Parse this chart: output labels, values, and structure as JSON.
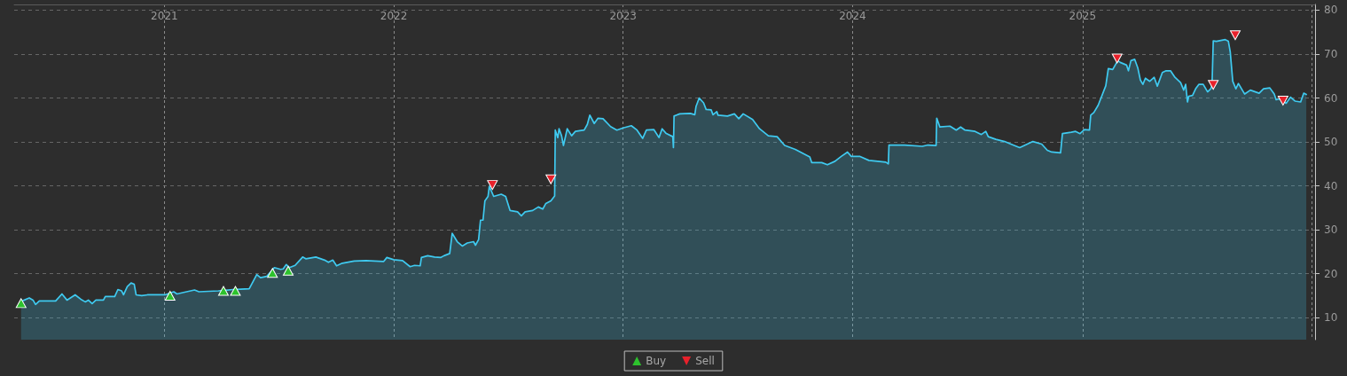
{
  "chart_data": {
    "type": "area",
    "xlim": [
      "2020-05-07",
      "2026-01-06"
    ],
    "xticks": [
      "2021",
      "2022",
      "2023",
      "2024",
      "2025",
      {
        "value": "2026",
        "label": null
      }
    ],
    "ylim": [
      5,
      81.3
    ],
    "yticks": [
      10,
      20,
      30,
      40,
      50,
      60,
      70,
      80
    ],
    "grid": true,
    "legend": "bottom",
    "series": [
      {
        "color": "#3fcaf0",
        "marker": "none",
        "x": [
          "2020-05-18",
          "2020-05-31",
          "2020-06-06",
          "2020-06-10",
          "2020-06-16",
          "2020-07-12",
          "2020-07-22",
          "2020-07-30",
          "2020-08-12",
          "2020-08-21",
          "2020-08-28",
          "2020-09-02",
          "2020-09-08",
          "2020-09-14",
          "2020-09-26",
          "2020-09-29",
          "2020-10-14",
          "2020-10-19",
          "2020-10-25",
          "2020-10-28",
          "2020-11-03",
          "2020-11-09",
          "2020-11-14",
          "2020-11-17",
          "2020-11-26",
          "2020-12-05",
          "2021-01-02",
          "2021-01-16",
          "2021-01-21",
          "2021-01-30",
          "2021-02-18",
          "2021-02-25",
          "2021-03-28",
          "2021-04-20",
          "2021-05-02",
          "2021-05-16",
          "2021-05-28",
          "2021-06-03",
          "2021-06-13",
          "2021-06-25",
          "2021-07-05",
          "2021-07-09",
          "2021-07-14",
          "2021-07-19",
          "2021-07-28",
          "2021-08-09",
          "2021-08-14",
          "2021-08-30",
          "2021-09-13",
          "2021-09-19",
          "2021-09-26",
          "2021-10-02",
          "2021-10-11",
          "2021-10-30",
          "2021-11-18",
          "2021-12-16",
          "2021-12-21",
          "2022-01-01",
          "2022-01-15",
          "2022-01-27",
          "2022-02-03",
          "2022-02-12",
          "2022-02-14",
          "2022-02-24",
          "2022-03-07",
          "2022-03-17",
          "2022-03-22",
          "2022-03-31",
          "2022-04-04",
          "2022-04-12",
          "2022-04-20",
          "2022-04-28",
          "2022-05-08",
          "2022-05-11",
          "2022-05-16",
          "2022-05-19",
          "2022-05-23",
          "2022-05-26",
          "2022-05-31",
          "2022-06-02",
          "2022-06-09",
          "2022-06-21",
          "2022-06-28",
          "2022-07-05",
          "2022-07-17",
          "2022-07-23",
          "2022-07-29",
          "2022-08-10",
          "2022-08-19",
          "2022-08-26",
          "2022-08-31",
          "2022-09-08",
          "2022-09-14",
          "2022-09-15",
          "2022-09-19",
          "2022-09-21",
          "2022-09-25",
          "2022-09-28",
          "2022-10-04",
          "2022-10-11",
          "2022-10-17",
          "2022-10-31",
          "2022-11-05",
          "2022-11-09",
          "2022-11-16",
          "2022-11-22",
          "2022-11-30",
          "2022-12-12",
          "2022-12-22",
          "2023-01-01",
          "2023-01-14",
          "2023-01-23",
          "2023-02-01",
          "2023-02-07",
          "2023-02-19",
          "2023-02-27",
          "2023-03-04",
          "2023-03-10",
          "2023-03-21",
          "2023-03-22",
          "2023-03-23",
          "2023-04-01",
          "2023-04-18",
          "2023-04-25",
          "2023-04-27",
          "2023-05-02",
          "2023-05-09",
          "2023-05-13",
          "2023-05-21",
          "2023-05-24",
          "2023-05-30",
          "2023-06-01",
          "2023-06-16",
          "2023-06-27",
          "2023-07-04",
          "2023-07-11",
          "2023-07-26",
          "2023-08-06",
          "2023-08-20",
          "2023-09-03",
          "2023-09-15",
          "2023-10-02",
          "2023-10-25",
          "2023-10-28",
          "2023-11-13",
          "2023-11-22",
          "2023-12-04",
          "2023-12-14",
          "2023-12-24",
          "2023-12-30",
          "2024-01-13",
          "2024-01-27",
          "2024-02-10",
          "2024-02-23",
          "2024-02-27",
          "2024-02-28",
          "2024-03-24",
          "2024-04-21",
          "2024-04-30",
          "2024-05-13",
          "2024-05-14",
          "2024-05-19",
          "2024-06-04",
          "2024-06-14",
          "2024-06-21",
          "2024-06-28",
          "2024-07-14",
          "2024-07-24",
          "2024-07-31",
          "2024-08-04",
          "2024-08-16",
          "2024-08-30",
          "2024-09-09",
          "2024-09-23",
          "2024-10-02",
          "2024-10-14",
          "2024-10-28",
          "2024-11-06",
          "2024-11-13",
          "2024-11-27",
          "2024-11-30",
          "2024-12-14",
          "2024-12-21",
          "2024-12-28",
          "2025-01-04",
          "2025-01-12",
          "2025-01-14",
          "2025-01-19",
          "2025-01-26",
          "2025-02-07",
          "2025-02-11",
          "2025-02-18",
          "2025-02-26",
          "2025-03-02",
          "2025-03-07",
          "2025-03-12",
          "2025-03-15",
          "2025-03-19",
          "2025-03-25",
          "2025-03-30",
          "2025-04-03",
          "2025-04-07",
          "2025-04-11",
          "2025-04-18",
          "2025-04-25",
          "2025-04-30",
          "2025-05-08",
          "2025-05-14",
          "2025-05-21",
          "2025-05-28",
          "2025-06-06",
          "2025-06-11",
          "2025-06-14",
          "2025-06-17",
          "2025-06-19",
          "2025-06-25",
          "2025-06-30",
          "2025-07-05",
          "2025-07-12",
          "2025-07-19",
          "2025-07-24",
          "2025-07-26",
          "2025-07-28",
          "2025-08-02",
          "2025-08-16",
          "2025-08-21",
          "2025-08-24",
          "2025-08-28",
          "2025-09-02",
          "2025-09-06",
          "2025-09-16",
          "2025-09-25",
          "2025-10-09",
          "2025-10-16",
          "2025-10-26",
          "2025-11-02",
          "2025-11-05",
          "2025-11-11",
          "2025-11-21",
          "2025-11-28",
          "2025-12-05",
          "2025-12-14",
          "2025-12-19",
          "2025-12-23"
        ],
        "values": [
          13.7,
          14.5,
          14.0,
          13.0,
          13.8,
          13.8,
          15.4,
          14.0,
          15.2,
          14.2,
          13.6,
          14.0,
          13.2,
          14.0,
          14.0,
          14.8,
          14.8,
          16.4,
          16.1,
          15.2,
          17.1,
          17.9,
          17.6,
          15.2,
          15.0,
          15.2,
          15.2,
          15.9,
          15.4,
          15.7,
          16.3,
          15.9,
          16.1,
          16.4,
          16.5,
          16.6,
          19.8,
          19.1,
          19.4,
          21.4,
          21.0,
          21.1,
          22.1,
          21.4,
          21.9,
          23.8,
          23.4,
          23.8,
          23.1,
          22.6,
          23.1,
          21.8,
          22.4,
          22.9,
          23.0,
          22.8,
          23.7,
          23.2,
          23.0,
          21.6,
          21.9,
          21.8,
          23.7,
          24.1,
          23.8,
          23.7,
          24.1,
          24.6,
          29.2,
          27.3,
          26.3,
          27.0,
          27.3,
          26.5,
          27.8,
          32.2,
          32.2,
          36.6,
          37.6,
          39.9,
          37.6,
          38.1,
          37.6,
          34.4,
          34.1,
          33.2,
          34.1,
          34.4,
          35.2,
          34.7,
          36.0,
          36.6,
          37.7,
          52.7,
          51.0,
          53.0,
          51.4,
          49.2,
          53.0,
          51.4,
          52.4,
          52.7,
          54.0,
          56.1,
          54.2,
          55.4,
          55.3,
          53.5,
          52.7,
          53.2,
          53.7,
          52.7,
          50.8,
          52.7,
          52.8,
          51.0,
          53.0,
          52.0,
          51.2,
          48.7,
          55.9,
          56.4,
          56.5,
          56.2,
          58.1,
          60.0,
          58.9,
          57.4,
          57.3,
          56.2,
          56.9,
          56.1,
          55.9,
          56.4,
          55.3,
          56.4,
          55.1,
          53.0,
          51.4,
          51.2,
          49.2,
          48.3,
          46.6,
          45.3,
          45.3,
          44.8,
          45.6,
          46.7,
          47.7,
          46.7,
          46.7,
          45.8,
          45.6,
          45.4,
          45.0,
          49.3,
          49.3,
          49.0,
          49.3,
          49.2,
          55.4,
          53.4,
          53.6,
          52.7,
          53.4,
          52.7,
          52.4,
          51.7,
          52.4,
          51.2,
          50.6,
          50.1,
          49.5,
          48.7,
          49.3,
          50.1,
          49.5,
          48.1,
          47.7,
          47.5,
          51.9,
          52.2,
          52.4,
          51.9,
          52.8,
          52.7,
          56.1,
          56.7,
          58.4,
          62.8,
          66.7,
          66.5,
          68.5,
          68.1,
          67.8,
          67.5,
          66.2,
          68.5,
          68.8,
          66.8,
          64.1,
          63.1,
          64.5,
          63.8,
          64.7,
          62.7,
          65.8,
          66.2,
          66.2,
          64.7,
          63.5,
          61.8,
          63.1,
          59.1,
          60.4,
          60.6,
          62.1,
          63.1,
          63.1,
          61.4,
          62.1,
          62.8,
          73.0,
          72.9,
          73.3,
          72.9,
          70.5,
          63.8,
          62.1,
          63.3,
          60.9,
          61.8,
          61.1,
          62.1,
          62.3,
          60.9,
          59.6,
          59.8,
          58.8,
          60.2,
          59.3,
          59.1,
          61.1,
          60.8
        ]
      },
      {
        "type": "scatter",
        "name": "Buy",
        "color": "#2dc22d",
        "marker": "triangle",
        "x": [
          "2020-05-18",
          "2021-01-10",
          "2021-04-05",
          "2021-04-24",
          "2021-06-22",
          "2021-07-17"
        ],
        "values": [
          13.3,
          15.0,
          16.1,
          16.1,
          20.2,
          20.7
        ]
      },
      {
        "type": "scatter",
        "name": "Sell",
        "color": "#e8212b",
        "marker": "triangle_down",
        "x": [
          "2022-06-07",
          "2022-09-08",
          "2025-02-25",
          "2025-07-28",
          "2025-09-01",
          "2025-11-16"
        ],
        "values": [
          40.2,
          41.5,
          69.0,
          63.0,
          74.3,
          59.4
        ]
      }
    ]
  }
}
